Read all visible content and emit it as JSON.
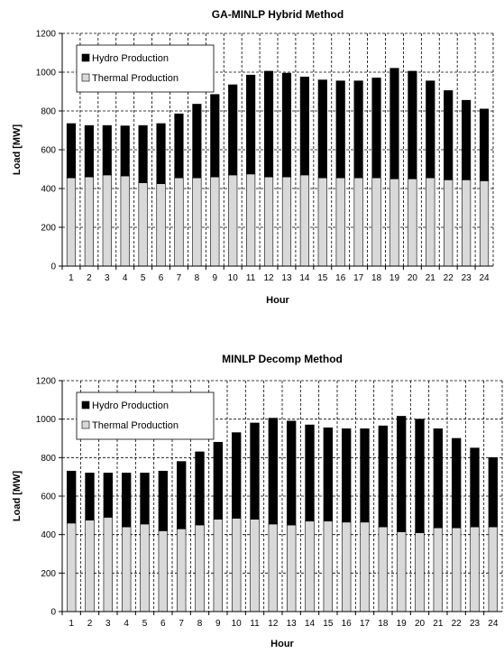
{
  "chart_data": [
    {
      "type": "bar",
      "stacked": true,
      "title": "GA-MINLP Hybrid Method",
      "xlabel": "Hour",
      "ylabel": "Load [MW]",
      "ylim": [
        0,
        1200
      ],
      "yticks": [
        0,
        200,
        400,
        600,
        800,
        1000,
        1200
      ],
      "grid": "dashed",
      "legend": "top-left",
      "categories": [
        "1",
        "2",
        "3",
        "4",
        "5",
        "6",
        "7",
        "8",
        "9",
        "10",
        "11",
        "12",
        "13",
        "14",
        "15",
        "16",
        "17",
        "18",
        "19",
        "20",
        "21",
        "22",
        "23",
        "24"
      ],
      "series": [
        {
          "name": "Hydro Production",
          "color": "#000000",
          "values": [
            280,
            265,
            255,
            258,
            295,
            310,
            330,
            380,
            425,
            465,
            510,
            545,
            535,
            505,
            505,
            500,
            500,
            515,
            570,
            555,
            500,
            460,
            410,
            370
          ]
        },
        {
          "name": "Thermal Production",
          "color": "#d9d9d9",
          "values": [
            455,
            460,
            470,
            465,
            430,
            425,
            455,
            455,
            460,
            470,
            475,
            460,
            460,
            470,
            455,
            455,
            455,
            455,
            450,
            450,
            455,
            445,
            445,
            440
          ]
        }
      ]
    },
    {
      "type": "bar",
      "stacked": true,
      "title": "MINLP Decomp Method",
      "xlabel": "Hour",
      "ylabel": "Load [MW]",
      "ylim": [
        0,
        1200
      ],
      "yticks": [
        0,
        200,
        400,
        600,
        800,
        1000,
        1200
      ],
      "grid": "dashed",
      "legend": "top-left",
      "categories": [
        "1",
        "2",
        "3",
        "4",
        "5",
        "6",
        "7",
        "8",
        "9",
        "10",
        "11",
        "12",
        "13",
        "14",
        "15",
        "16",
        "17",
        "18",
        "19",
        "20",
        "21",
        "22",
        "23",
        "24"
      ],
      "series": [
        {
          "name": "Hydro Production",
          "color": "#000000",
          "values": [
            270,
            245,
            230,
            280,
            265,
            310,
            350,
            380,
            400,
            445,
            500,
            550,
            540,
            500,
            485,
            485,
            485,
            525,
            600,
            590,
            515,
            465,
            410,
            360
          ]
        },
        {
          "name": "Thermal Production",
          "color": "#d9d9d9",
          "values": [
            460,
            475,
            490,
            440,
            455,
            420,
            430,
            450,
            480,
            485,
            480,
            455,
            450,
            470,
            470,
            465,
            465,
            440,
            415,
            410,
            435,
            435,
            440,
            440
          ]
        }
      ]
    }
  ]
}
